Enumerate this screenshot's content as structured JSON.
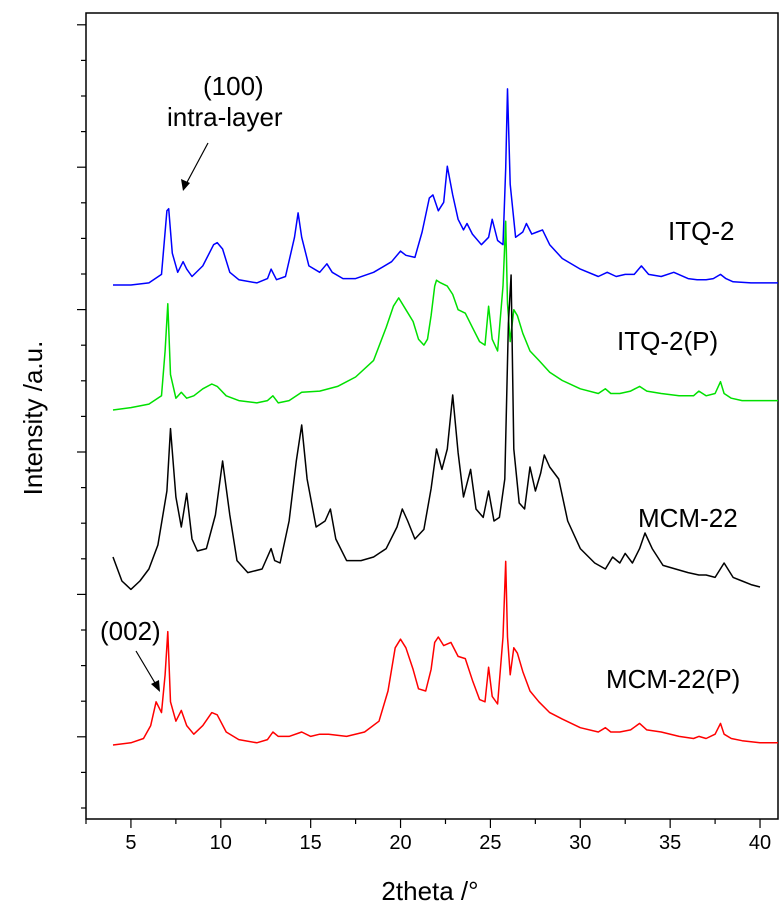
{
  "chart_data": {
    "type": "line",
    "xlabel": "2theta /°",
    "ylabel": "Intensity /a.u.",
    "xlim": [
      2.5,
      41
    ],
    "x_ticks": [
      5,
      10,
      15,
      20,
      25,
      30,
      35,
      40
    ],
    "x_tick_labels": [
      "5",
      "10",
      "15",
      "20",
      "25",
      "30",
      "35",
      "40"
    ],
    "y_tick_labels_shown": false,
    "grid": false,
    "legend": "none; series labelled at right of each curve",
    "series": [
      {
        "name": "ITQ-2",
        "color": "#0000ff",
        "x": [
          4.0,
          5.0,
          6.0,
          6.7,
          7.0,
          7.1,
          7.3,
          7.6,
          7.9,
          8.1,
          8.4,
          9.0,
          9.6,
          9.8,
          10.1,
          10.5,
          11.0,
          12.0,
          12.6,
          12.8,
          13.1,
          13.6,
          14.1,
          14.3,
          14.5,
          14.9,
          15.5,
          15.9,
          16.2,
          16.8,
          17.5,
          18.5,
          19.5,
          20.0,
          20.3,
          20.8,
          21.2,
          21.6,
          21.8,
          22.1,
          22.4,
          22.6,
          22.9,
          23.2,
          23.5,
          23.7,
          24.0,
          24.5,
          24.9,
          25.1,
          25.4,
          25.7,
          25.85,
          25.95,
          26.1,
          26.4,
          26.8,
          27.0,
          27.3,
          27.6,
          27.9,
          28.3,
          29.0,
          30.0,
          31.0,
          31.5,
          32.0,
          32.5,
          33.0,
          33.4,
          33.8,
          34.5,
          35.2,
          36.0,
          36.5,
          37.0,
          37.4,
          37.8,
          38.1,
          38.5,
          39.5,
          40.5,
          41.0
        ],
        "y": [
          0.5,
          0.5,
          0.52,
          0.6,
          1.2,
          1.22,
          0.8,
          0.62,
          0.72,
          0.65,
          0.58,
          0.68,
          0.88,
          0.9,
          0.84,
          0.62,
          0.55,
          0.52,
          0.56,
          0.65,
          0.55,
          0.58,
          0.95,
          1.18,
          0.95,
          0.68,
          0.62,
          0.7,
          0.62,
          0.56,
          0.56,
          0.62,
          0.72,
          0.82,
          0.78,
          0.76,
          1.0,
          1.32,
          1.35,
          1.2,
          1.28,
          1.62,
          1.35,
          1.12,
          1.02,
          1.08,
          0.98,
          0.88,
          0.95,
          1.12,
          0.92,
          0.88,
          1.6,
          2.35,
          1.45,
          0.95,
          1.0,
          1.08,
          0.98,
          1.0,
          1.02,
          0.88,
          0.75,
          0.65,
          0.58,
          0.62,
          0.58,
          0.6,
          0.6,
          0.68,
          0.6,
          0.58,
          0.62,
          0.56,
          0.55,
          0.55,
          0.56,
          0.6,
          0.56,
          0.53,
          0.52,
          0.52,
          0.52
        ],
        "label": "ITQ-2"
      },
      {
        "name": "ITQ-2(P)",
        "color": "#00e000",
        "x": [
          4.0,
          5.0,
          6.0,
          6.7,
          6.9,
          7.05,
          7.2,
          7.5,
          7.8,
          8.1,
          8.5,
          9.0,
          9.5,
          9.8,
          10.3,
          11.0,
          12.0,
          12.6,
          12.9,
          13.2,
          13.8,
          14.5,
          15.5,
          16.5,
          17.5,
          18.5,
          19.2,
          19.6,
          19.9,
          20.3,
          20.7,
          21.0,
          21.3,
          21.5,
          21.7,
          21.9,
          22.0,
          22.2,
          22.6,
          22.9,
          23.2,
          23.6,
          24.0,
          24.4,
          24.7,
          24.9,
          25.1,
          25.4,
          25.7,
          25.85,
          25.95,
          26.1,
          26.3,
          26.5,
          26.8,
          27.2,
          27.7,
          28.3,
          29.0,
          30.0,
          31.0,
          31.4,
          31.7,
          32.2,
          32.8,
          33.3,
          33.7,
          34.5,
          35.5,
          36.3,
          36.6,
          37.0,
          37.5,
          37.8,
          38.0,
          38.4,
          39.0,
          40.0,
          41.0
        ],
        "y": [
          0.5,
          0.52,
          0.55,
          0.62,
          1.0,
          1.4,
          0.8,
          0.6,
          0.65,
          0.6,
          0.62,
          0.68,
          0.72,
          0.7,
          0.62,
          0.58,
          0.56,
          0.58,
          0.62,
          0.56,
          0.58,
          0.65,
          0.66,
          0.7,
          0.78,
          0.92,
          1.2,
          1.38,
          1.45,
          1.35,
          1.25,
          1.1,
          1.05,
          1.1,
          1.3,
          1.55,
          1.6,
          1.58,
          1.55,
          1.48,
          1.35,
          1.32,
          1.2,
          1.08,
          1.05,
          1.38,
          1.1,
          1.0,
          1.55,
          2.1,
          1.4,
          1.08,
          1.35,
          1.3,
          1.15,
          1.0,
          0.92,
          0.82,
          0.75,
          0.68,
          0.64,
          0.68,
          0.64,
          0.64,
          0.66,
          0.7,
          0.66,
          0.64,
          0.62,
          0.62,
          0.66,
          0.62,
          0.64,
          0.74,
          0.64,
          0.6,
          0.58,
          0.58,
          0.58
        ],
        "label": "ITQ-2(P)"
      },
      {
        "name": "MCM-22",
        "color": "#000000",
        "x": [
          4.0,
          4.5,
          5.0,
          5.5,
          6.0,
          6.5,
          7.0,
          7.2,
          7.5,
          7.8,
          8.1,
          8.4,
          8.7,
          9.2,
          9.7,
          10.1,
          10.5,
          10.9,
          11.5,
          12.3,
          12.8,
          13.0,
          13.3,
          13.8,
          14.2,
          14.5,
          14.8,
          15.3,
          15.8,
          16.1,
          16.4,
          17.0,
          17.8,
          18.5,
          19.2,
          19.8,
          20.1,
          20.4,
          20.8,
          21.3,
          21.7,
          22.0,
          22.3,
          22.6,
          22.9,
          23.2,
          23.5,
          23.9,
          24.2,
          24.6,
          24.9,
          25.2,
          25.5,
          25.8,
          26.0,
          26.15,
          26.3,
          26.6,
          26.9,
          27.2,
          27.5,
          27.8,
          28.0,
          28.3,
          28.8,
          29.3,
          30.0,
          30.8,
          31.4,
          31.8,
          32.2,
          32.5,
          32.9,
          33.3,
          33.6,
          34.0,
          34.6,
          35.3,
          36.0,
          36.6,
          37.0,
          37.5,
          38.0,
          38.5,
          39.0,
          39.5,
          40.0
        ],
        "y": [
          0.65,
          0.45,
          0.38,
          0.45,
          0.55,
          0.75,
          1.2,
          1.72,
          1.15,
          0.9,
          1.18,
          0.8,
          0.7,
          0.72,
          1.0,
          1.45,
          1.0,
          0.62,
          0.52,
          0.55,
          0.72,
          0.62,
          0.6,
          0.95,
          1.45,
          1.75,
          1.3,
          0.9,
          0.95,
          1.05,
          0.8,
          0.62,
          0.62,
          0.65,
          0.72,
          0.9,
          1.05,
          0.95,
          0.8,
          0.88,
          1.22,
          1.55,
          1.38,
          1.55,
          2.0,
          1.52,
          1.15,
          1.38,
          1.05,
          0.98,
          1.2,
          0.95,
          0.98,
          1.3,
          2.6,
          3.0,
          1.55,
          1.1,
          1.05,
          1.4,
          1.2,
          1.35,
          1.5,
          1.4,
          1.3,
          0.95,
          0.72,
          0.6,
          0.55,
          0.65,
          0.6,
          0.68,
          0.6,
          0.72,
          0.85,
          0.72,
          0.58,
          0.55,
          0.52,
          0.5,
          0.5,
          0.48,
          0.6,
          0.48,
          0.45,
          0.42,
          0.4
        ],
        "label": "MCM-22"
      },
      {
        "name": "MCM-22(P)",
        "color": "#ff0000",
        "x": [
          4.0,
          5.0,
          5.7,
          6.1,
          6.4,
          6.7,
          6.9,
          7.05,
          7.2,
          7.5,
          7.8,
          8.1,
          8.5,
          9.0,
          9.5,
          9.8,
          10.3,
          11.0,
          12.0,
          12.6,
          12.9,
          13.2,
          13.8,
          14.5,
          15.0,
          15.5,
          16.0,
          17.0,
          18.0,
          18.8,
          19.3,
          19.7,
          20.0,
          20.3,
          20.7,
          21.0,
          21.4,
          21.7,
          21.9,
          22.1,
          22.4,
          22.8,
          23.2,
          23.6,
          24.0,
          24.4,
          24.7,
          24.9,
          25.1,
          25.4,
          25.7,
          25.85,
          25.95,
          26.1,
          26.3,
          26.5,
          26.8,
          27.2,
          27.7,
          28.3,
          29.0,
          30.0,
          31.0,
          31.4,
          31.7,
          32.2,
          32.8,
          33.3,
          33.7,
          34.5,
          35.5,
          36.3,
          36.6,
          37.0,
          37.5,
          37.8,
          38.0,
          38.4,
          39.0,
          40.0,
          41.0
        ],
        "y": [
          0.5,
          0.52,
          0.56,
          0.68,
          0.9,
          0.8,
          1.15,
          1.55,
          0.9,
          0.72,
          0.82,
          0.68,
          0.6,
          0.68,
          0.8,
          0.78,
          0.62,
          0.55,
          0.52,
          0.55,
          0.62,
          0.58,
          0.58,
          0.62,
          0.58,
          0.6,
          0.6,
          0.58,
          0.62,
          0.72,
          1.0,
          1.4,
          1.48,
          1.4,
          1.2,
          1.02,
          1.0,
          1.2,
          1.45,
          1.5,
          1.42,
          1.45,
          1.32,
          1.3,
          1.1,
          0.92,
          0.9,
          1.22,
          0.95,
          0.88,
          1.5,
          2.2,
          1.5,
          1.15,
          1.4,
          1.35,
          1.18,
          1.0,
          0.9,
          0.8,
          0.74,
          0.66,
          0.62,
          0.66,
          0.62,
          0.62,
          0.64,
          0.7,
          0.64,
          0.62,
          0.58,
          0.56,
          0.58,
          0.56,
          0.6,
          0.7,
          0.6,
          0.56,
          0.54,
          0.52,
          0.52
        ],
        "label": "MCM-22(P)"
      }
    ],
    "annotations": [
      {
        "text_line1": "(100)",
        "text_line2": "intra-layer",
        "points_to_x": 7.1,
        "series": "ITQ-2"
      },
      {
        "text": "(002)",
        "points_to_x": 6.4,
        "series": "MCM-22(P)"
      }
    ]
  }
}
